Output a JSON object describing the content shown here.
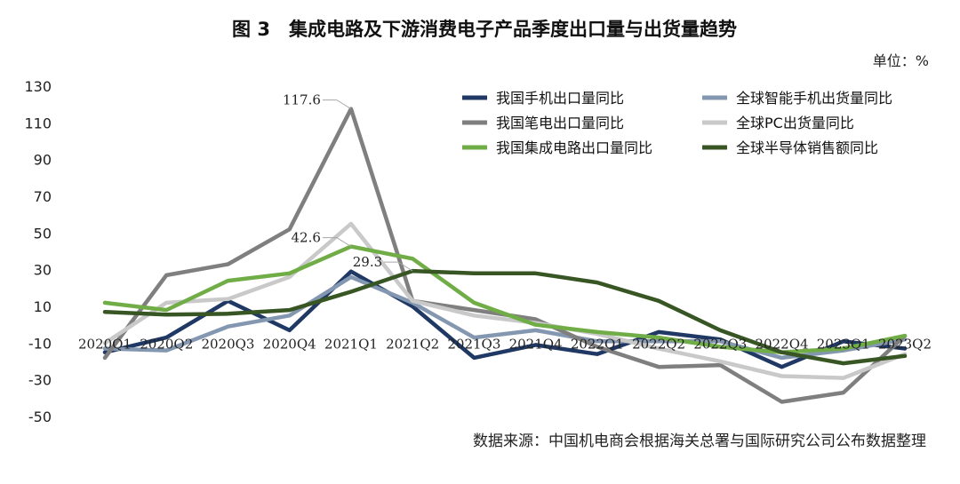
{
  "chart_data": {
    "type": "line",
    "title": "图 3　集成电路及下游消费电子产品季度出口量与出货量趋势",
    "unit_label": "单位：%",
    "source": "数据来源：中国机电商会根据海关总署与国际研究公司公布数据整理",
    "categories": [
      "2020Q1",
      "2020Q2",
      "2020Q3",
      "2020Q4",
      "2021Q1",
      "2021Q2",
      "2021Q3",
      "2021Q4",
      "2022Q1",
      "2022Q2",
      "2022Q3",
      "2022Q4",
      "2023Q1",
      "2023Q2"
    ],
    "y_ticks": [
      130,
      110,
      90,
      70,
      50,
      30,
      10,
      -10,
      -30,
      -50
    ],
    "ylim": [
      -50,
      130
    ],
    "grid": false,
    "legend_position": "top-right",
    "series": [
      {
        "name": "我国手机出口量同比",
        "color": "#1f3864",
        "values": [
          -15,
          -7,
          13,
          -3,
          29,
          10,
          -18,
          -11,
          -16,
          -4,
          -8,
          -23,
          -9,
          -13
        ]
      },
      {
        "name": "全球智能手机出货量同比",
        "color": "#8497b0",
        "values": [
          -13,
          -14,
          -1,
          5,
          26,
          12,
          -7,
          -3,
          -9,
          -9,
          -9,
          -18,
          -14,
          -8
        ]
      },
      {
        "name": "我国笔电出口量同比",
        "color": "#7f7f7f",
        "values": [
          -18,
          27,
          33,
          52,
          117.6,
          13,
          8,
          3,
          -12,
          -23,
          -22,
          -42,
          -37,
          -6
        ]
      },
      {
        "name": "全球PC出货量同比",
        "color": "#c9c9c9",
        "values": [
          -10,
          12,
          14,
          26,
          55,
          13,
          5,
          1,
          -5,
          -13,
          -20,
          -28,
          -29,
          -16
        ]
      },
      {
        "name": "我国集成电路出口量同比",
        "color": "#70ad47",
        "values": [
          12,
          8,
          24,
          28,
          42.6,
          36,
          12,
          0,
          -4,
          -7,
          -12,
          -15,
          -13,
          -6
        ]
      },
      {
        "name": "全球半导体销售额同比",
        "color": "#375623",
        "values": [
          7,
          5.5,
          6,
          8,
          18,
          29.3,
          28,
          28,
          23,
          13,
          -3,
          -15,
          -21,
          -17
        ]
      }
    ],
    "annotations": [
      {
        "text": "117.6",
        "category": "2021Q1",
        "value": 117.6
      },
      {
        "text": "42.6",
        "category": "2021Q1",
        "value": 42.6
      },
      {
        "text": "29.3",
        "category": "2021Q2",
        "value": 29.3
      }
    ]
  }
}
